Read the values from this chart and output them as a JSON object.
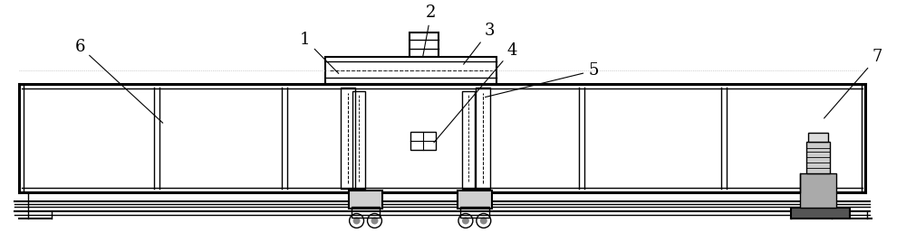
{
  "bg_color": "#ffffff",
  "line_color": "#000000",
  "label_fontsize": 13,
  "figsize": [
    10.0,
    2.78
  ],
  "dpi": 100
}
